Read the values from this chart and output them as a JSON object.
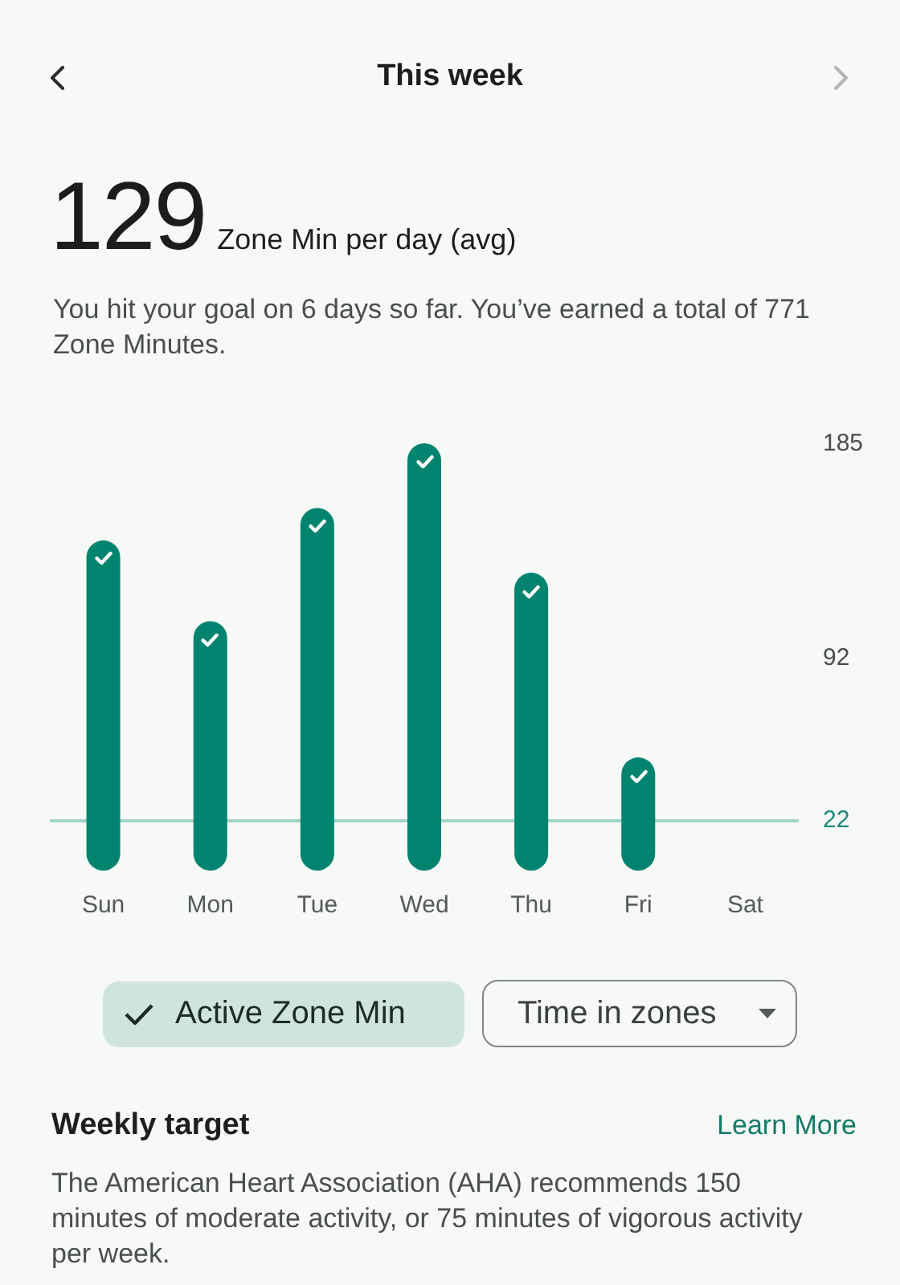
{
  "chart_data": {
    "type": "bar",
    "title": "This week",
    "categories": [
      "Sun",
      "Mon",
      "Tue",
      "Wed",
      "Thu",
      "Fri",
      "Sat"
    ],
    "values": [
      143,
      108,
      157,
      185,
      129,
      49,
      null
    ],
    "color": "#00846f",
    "ylim": [
      0,
      185
    ],
    "yticks": [
      185,
      92
    ],
    "grid": false,
    "ref_lines": [
      {
        "axis": "y",
        "value": 22,
        "label": "22",
        "color": "#a3d4cc"
      }
    ],
    "annotations": [
      "129",
      "Zone Min per day (avg)",
      "You hit your goal on 6 days so far. You’ve earned a total of 771 Zone Minutes.",
      "Active Zone Min",
      "Time in zones",
      "Weekly target",
      "Learn More",
      "The American Heart Association (AHA) recommends 150 minutes of moderate activity, or 75 minutes of vigorous activity per week."
    ]
  }
}
